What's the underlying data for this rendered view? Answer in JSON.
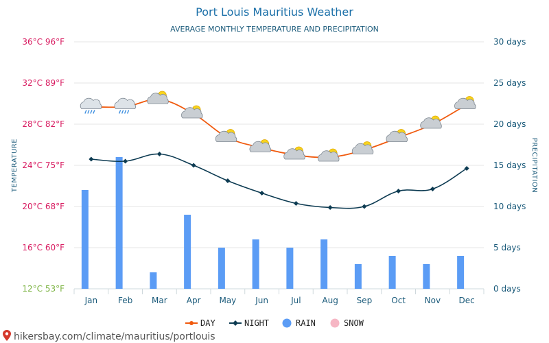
{
  "header": {
    "title": "Port Louis Mauritius Weather",
    "subtitle": "AVERAGE MONTHLY TEMPERATURE AND PRECIPITATION"
  },
  "footer": {
    "url": "hikersbay.com/climate/mauritius/portlouis"
  },
  "colors": {
    "day": "#f05a0e",
    "night": "#0d3b52",
    "rain": "#5b9cf5",
    "snow": "#f6b6c4",
    "grid": "#e6e6e6",
    "ltick_hot": "#d81b60",
    "ltick_cold": "#7cb342",
    "rtick": "#1a5a7a"
  },
  "legend": [
    {
      "label": "DAY",
      "kind": "line",
      "color": "#f05a0e"
    },
    {
      "label": "NIGHT",
      "kind": "line",
      "color": "#0d3b52"
    },
    {
      "label": "RAIN",
      "kind": "dot",
      "color": "#5b9cf5"
    },
    {
      "label": "SNOW",
      "kind": "dot",
      "color": "#f6b6c4"
    }
  ],
  "chart_data": {
    "type": "line",
    "title": "Port Louis Mauritius Weather",
    "subtitle": "AVERAGE MONTHLY TEMPERATURE AND PRECIPITATION",
    "categories": [
      "Jan",
      "Feb",
      "Mar",
      "Apr",
      "May",
      "Jun",
      "Jul",
      "Aug",
      "Sep",
      "Oct",
      "Nov",
      "Dec"
    ],
    "y_left": {
      "label": "TEMPERATURE",
      "unit": "°C",
      "ylim": [
        12,
        36
      ],
      "ticks": [
        "12°C 53°F",
        "16°C 60°F",
        "20°C 68°F",
        "24°C 75°F",
        "28°C 82°F",
        "32°C 89°F",
        "36°C 96°F"
      ]
    },
    "y_right": {
      "label": "PRECIPITATION",
      "unit": "days",
      "ylim": [
        0,
        30
      ],
      "ticks": [
        "0 days",
        "5 days",
        "10 days",
        "15 days",
        "20 days",
        "25 days",
        "30 days"
      ]
    },
    "series": [
      {
        "name": "DAY",
        "type": "line",
        "axis": "left",
        "values": [
          29.7,
          29.7,
          30.4,
          29.0,
          26.7,
          25.7,
          25.0,
          24.8,
          25.5,
          26.7,
          28.0,
          29.9
        ]
      },
      {
        "name": "NIGHT",
        "type": "line",
        "axis": "left",
        "values": [
          24.6,
          24.4,
          25.1,
          24.0,
          22.5,
          21.3,
          20.3,
          19.9,
          20.0,
          21.5,
          21.7,
          23.7
        ]
      },
      {
        "name": "RAIN",
        "type": "bar",
        "axis": "right",
        "values": [
          12,
          16,
          2,
          9,
          5,
          6,
          5,
          6,
          3,
          4,
          3,
          4
        ]
      },
      {
        "name": "SNOW",
        "type": "bar",
        "axis": "right",
        "values": [
          0,
          0,
          0,
          0,
          0,
          0,
          0,
          0,
          0,
          0,
          0,
          0
        ]
      }
    ],
    "weather_icons": [
      "rain-cloud-icon",
      "rain-cloud-icon",
      "sun-cloud-icon",
      "sun-cloud-icon",
      "sun-cloud-icon",
      "sun-cloud-icon",
      "sun-cloud-icon",
      "sun-cloud-icon",
      "sun-cloud-icon",
      "sun-cloud-icon",
      "sun-cloud-icon",
      "sun-cloud-icon"
    ],
    "grid": true,
    "legend_position": "bottom-center"
  }
}
